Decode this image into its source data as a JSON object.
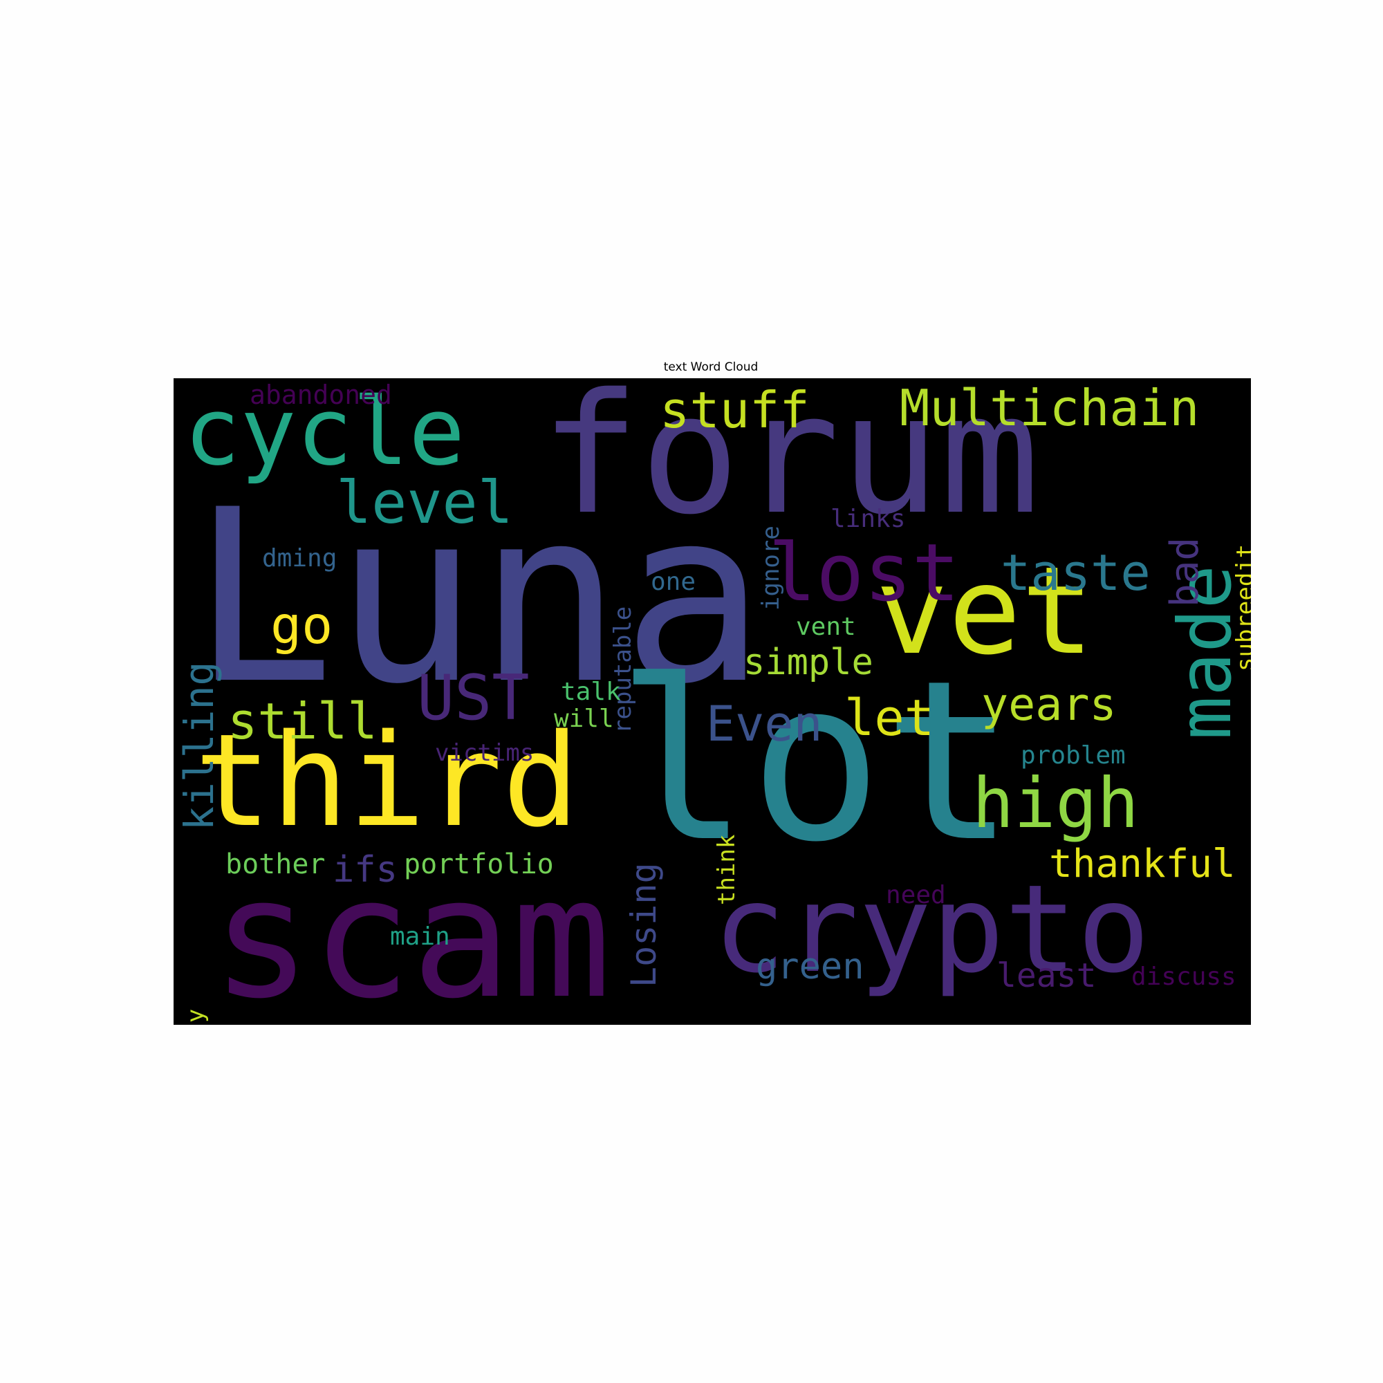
{
  "title": "text Word Cloud",
  "chart_data": {
    "type": "wordcloud",
    "title": "text Word Cloud",
    "background": "#000000",
    "colormap": "viridis",
    "words": [
      {
        "text": "Luna",
        "color": "#414487",
        "vertical": false
      },
      {
        "text": "forum",
        "color": "#46397f",
        "vertical": false
      },
      {
        "text": "lot",
        "color": "#26828e",
        "vertical": false
      },
      {
        "text": "scam",
        "color": "#440a58",
        "vertical": false
      },
      {
        "text": "third",
        "color": "#fde725",
        "vertical": false
      },
      {
        "text": "crypto",
        "color": "#472a7a",
        "vertical": false
      },
      {
        "text": "cycle",
        "color": "#21a685",
        "vertical": false
      },
      {
        "text": "vet",
        "color": "#d2e21b",
        "vertical": false
      },
      {
        "text": "made",
        "color": "#1f9a8a",
        "vertical": true
      },
      {
        "text": "lost",
        "color": "#4b0c64",
        "vertical": false
      },
      {
        "text": "high",
        "color": "#8fd744",
        "vertical": false
      },
      {
        "text": "level",
        "color": "#1f968b",
        "vertical": false
      },
      {
        "text": "Multichain",
        "color": "#b5de2b",
        "vertical": false
      },
      {
        "text": "stuff",
        "color": "#c5e021",
        "vertical": false
      },
      {
        "text": "taste",
        "color": "#2a788e",
        "vertical": false
      },
      {
        "text": "UST",
        "color": "#482878",
        "vertical": false
      },
      {
        "text": "years",
        "color": "#b8de29",
        "vertical": false
      },
      {
        "text": "Even",
        "color": "#3b528b",
        "vertical": false
      },
      {
        "text": "let",
        "color": "#dde318",
        "vertical": false
      },
      {
        "text": "still",
        "color": "#addc30",
        "vertical": false
      },
      {
        "text": "go",
        "color": "#fde725",
        "vertical": false
      },
      {
        "text": "thankful",
        "color": "#e5e419",
        "vertical": false
      },
      {
        "text": "simple",
        "color": "#a5db36",
        "vertical": false
      },
      {
        "text": "killing",
        "color": "#2c728e",
        "vertical": true
      },
      {
        "text": "Losing",
        "color": "#3e4989",
        "vertical": true
      },
      {
        "text": "bad",
        "color": "#46337e",
        "vertical": true
      },
      {
        "text": "green",
        "color": "#34618d",
        "vertical": false
      },
      {
        "text": "least",
        "color": "#481b6d",
        "vertical": false
      },
      {
        "text": "ifs",
        "color": "#453882",
        "vertical": false
      },
      {
        "text": "portfolio",
        "color": "#73d056",
        "vertical": false
      },
      {
        "text": "bother",
        "color": "#6ccd5a",
        "vertical": false
      },
      {
        "text": "mentality",
        "color": "#c2df23",
        "vertical": true
      },
      {
        "text": "subreedit",
        "color": "#dfe318",
        "vertical": true
      },
      {
        "text": "abandoned",
        "color": "#440154",
        "vertical": false
      },
      {
        "text": "reputable",
        "color": "#3b518b",
        "vertical": true
      },
      {
        "text": "ignore",
        "color": "#355f8d",
        "vertical": true
      },
      {
        "text": "links",
        "color": "#472d7b",
        "vertical": false
      },
      {
        "text": "dming",
        "color": "#33638d",
        "vertical": false
      },
      {
        "text": "one",
        "color": "#31688e",
        "vertical": false
      },
      {
        "text": "vent",
        "color": "#5ec962",
        "vertical": false
      },
      {
        "text": "talk",
        "color": "#4ac16d",
        "vertical": false
      },
      {
        "text": "will",
        "color": "#7ad151",
        "vertical": false
      },
      {
        "text": "victims",
        "color": "#482475",
        "vertical": false
      },
      {
        "text": "problem",
        "color": "#25858e",
        "vertical": false
      },
      {
        "text": "think",
        "color": "#c8e020",
        "vertical": true
      },
      {
        "text": "need",
        "color": "#450559",
        "vertical": false
      },
      {
        "text": "main",
        "color": "#1fa187",
        "vertical": false
      },
      {
        "text": "discuss",
        "color": "#440256",
        "vertical": false
      }
    ]
  }
}
